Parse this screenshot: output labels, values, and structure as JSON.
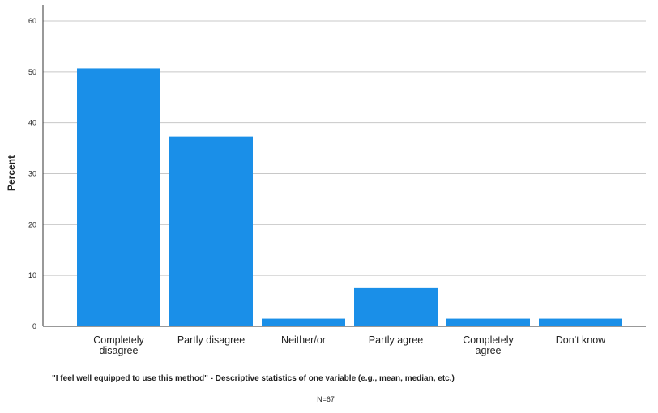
{
  "chart_data": {
    "type": "bar",
    "categories": [
      "Completely disagree",
      "Partly disagree",
      "Neither/or",
      "Partly agree",
      "Completely agree",
      "Don't know"
    ],
    "category_lines": [
      [
        "Completely",
        "disagree"
      ],
      [
        "Partly disagree"
      ],
      [
        "Neither/or"
      ],
      [
        "Partly agree"
      ],
      [
        "Completely",
        "agree"
      ],
      [
        "Don't know"
      ]
    ],
    "values": [
      50.7,
      37.3,
      1.5,
      7.5,
      1.5,
      1.5
    ],
    "ylabel": "Percent",
    "xlabel": "",
    "ylim": [
      0,
      60
    ],
    "yticks": [
      0,
      10,
      20,
      30,
      40,
      50,
      60
    ],
    "grid": true,
    "bar_color": "#1a8fe8",
    "grid_color": "#c8c8c8",
    "caption": "\"I feel well equipped to use this method\" - Descriptive statistics of one variable (e.g., mean, median, etc.)",
    "note": "N=67"
  }
}
